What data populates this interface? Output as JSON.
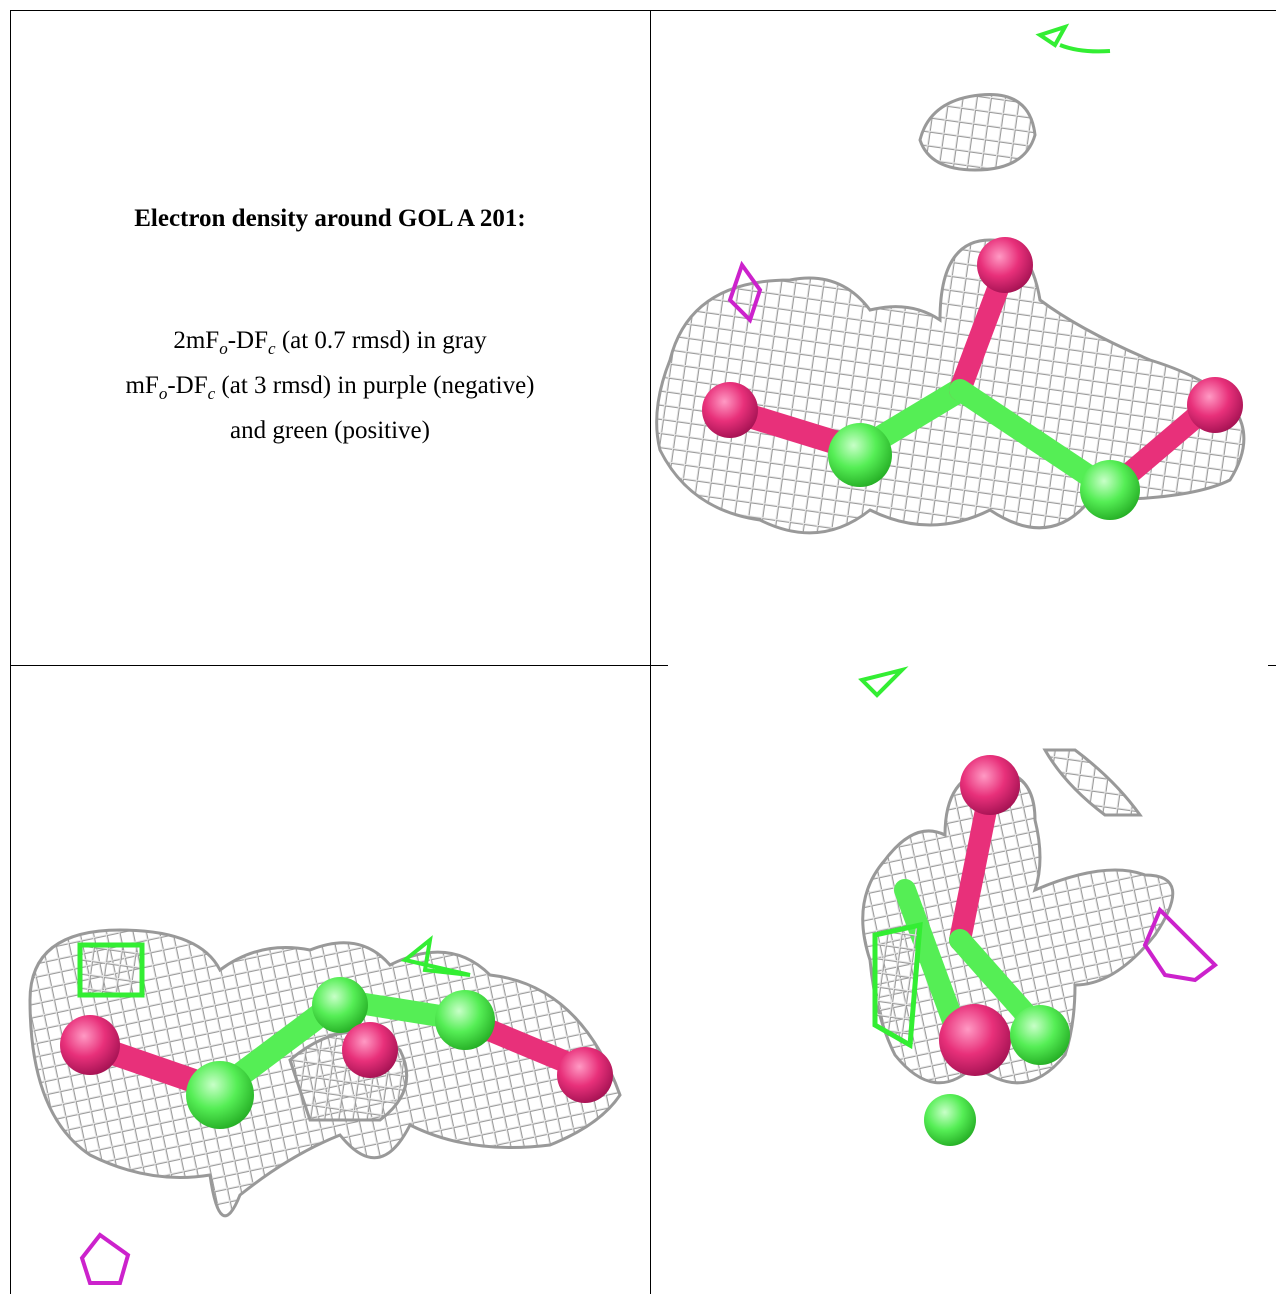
{
  "title": "Electron density around GOL A 201:",
  "legend": [
    [
      "2mF",
      "o",
      "-DF",
      "c",
      " (at 0.7 rmsd) in gray"
    ],
    [
      "mF",
      "o",
      "-DF",
      "c",
      " (at 3 rmsd) in purple (negative)"
    ],
    [
      "and green (positive)"
    ]
  ]
}
